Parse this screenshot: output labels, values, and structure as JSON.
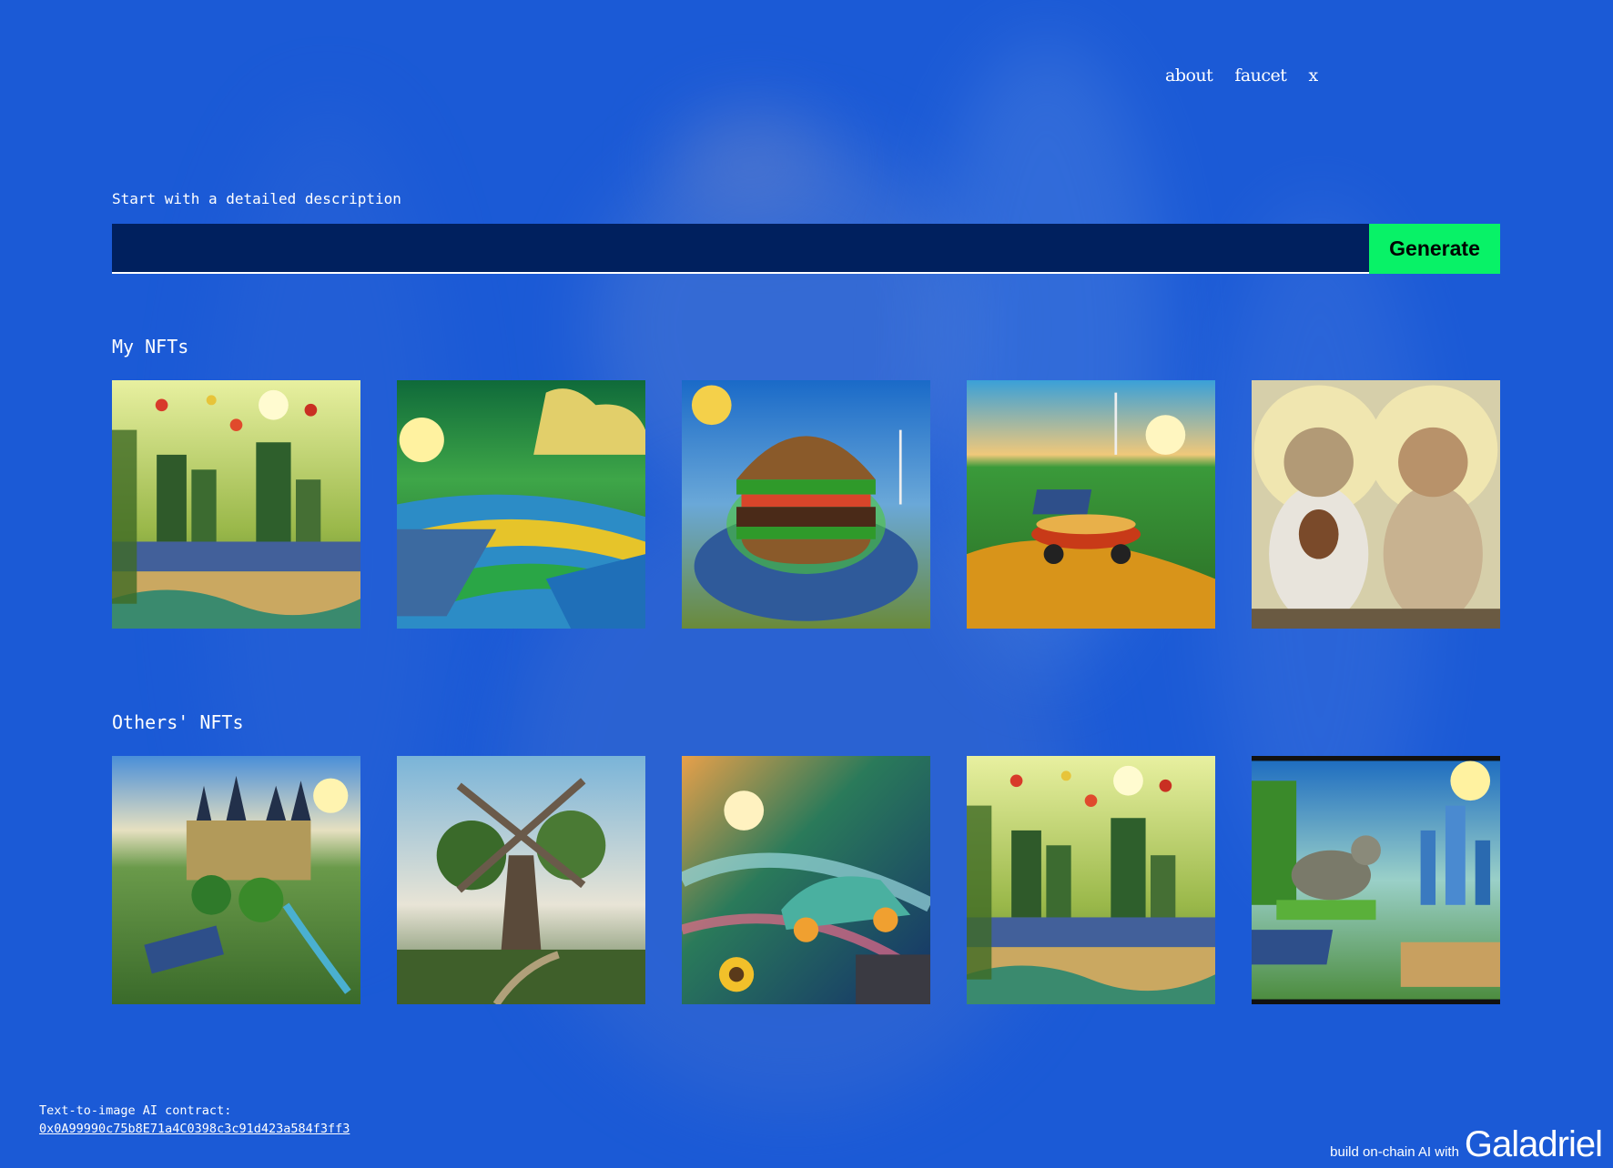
{
  "nav": {
    "about": "about",
    "faucet": "faucet",
    "x": "x"
  },
  "prompt": {
    "label": "Start with a detailed description",
    "value": "",
    "placeholder": "",
    "button_label": "Generate"
  },
  "my_nfts": {
    "title": "My NFTs",
    "items": [
      {
        "name": "apple-city-solar"
      },
      {
        "name": "striped-fields-sunset"
      },
      {
        "name": "burger-solar-field"
      },
      {
        "name": "hotdog-car-hills"
      },
      {
        "name": "two-cats-portrait"
      }
    ]
  },
  "others_nfts": {
    "title": "Others' NFTs",
    "items": [
      {
        "name": "castle-landscape"
      },
      {
        "name": "windmill-tree"
      },
      {
        "name": "solar-car-swirl"
      },
      {
        "name": "apple-city-solar"
      },
      {
        "name": "rat-futuristic-city"
      }
    ]
  },
  "footer": {
    "contract_label": "Text-to-image AI contract:",
    "contract_address": "0x0A99990c75b8E71a4C0398c3c91d423a584f3ff3",
    "tagline": "build on-chain AI with",
    "brand": "Galadriel"
  },
  "colors": {
    "background": "#1b5ad6",
    "input_bg": "#00205e",
    "accent": "#08f267"
  }
}
